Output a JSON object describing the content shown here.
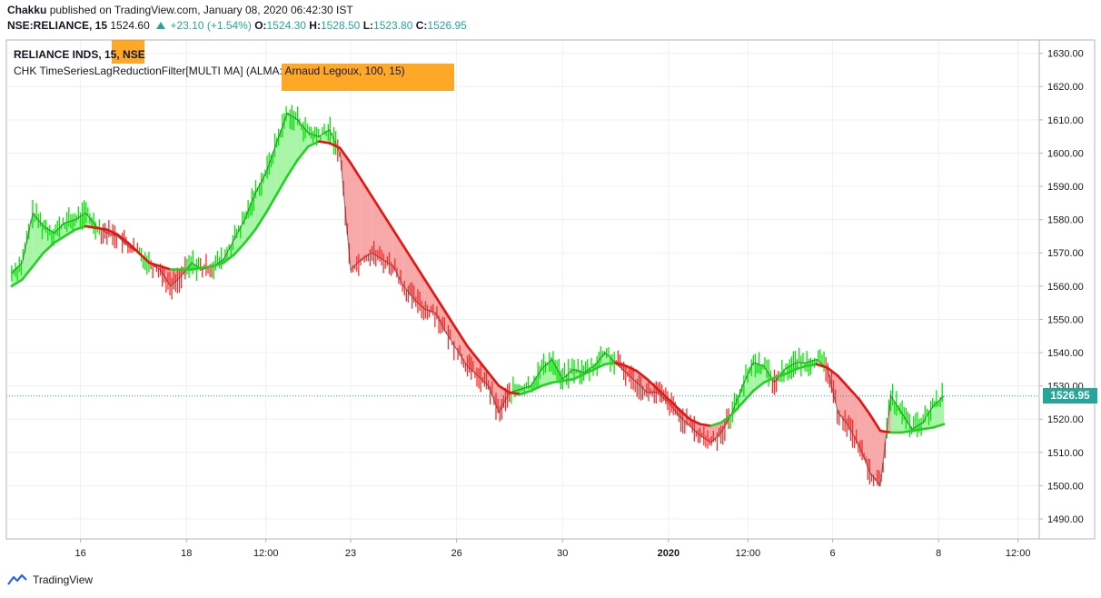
{
  "header": {
    "publisher": "Chakku",
    "published_text": "published on TradingView.com, January 08, 2020 06:42:30 IST",
    "symbol": "NSE:RELIANCE, 15",
    "last": "1524.60",
    "change": "+23.10 (+1.54%)",
    "o_label": "O:",
    "o_value": "1524.30",
    "h_label": "H:",
    "h_value": "1528.50",
    "l_label": "L:",
    "l_value": "1523.80",
    "c_label": "C:",
    "c_value": "1526.95"
  },
  "legend": {
    "series_prefix": "RELIANCE INDS, 15, ",
    "series_exchange": "NSE",
    "indicator_prefix": "CHK TimeSeriesLagReductionFilter[MULTI MA] (ALMA",
    "indicator_rest": ": Arnaud Legoux, 100, 15)"
  },
  "price_tag": "1526.95",
  "footer": {
    "brand": "TradingView"
  },
  "colors": {
    "up": "#00e600",
    "down": "#ff2a2a",
    "ma_up": "#22d122",
    "ma_down": "#e8130f",
    "fill_up": "#a8f5a8",
    "fill_down": "#f7a8a8",
    "price_line": "#26a69a"
  },
  "chart_data": {
    "type": "line",
    "ylim": [
      1484,
      1634
    ],
    "y_ticks": [
      "1630.00",
      "1620.00",
      "1610.00",
      "1600.00",
      "1590.00",
      "1580.00",
      "1570.00",
      "1560.00",
      "1550.00",
      "1540.00",
      "1530.00",
      "1520.00",
      "1510.00",
      "1500.00",
      "1490.00"
    ],
    "y_tick_values": [
      1630,
      1620,
      1610,
      1600,
      1590,
      1580,
      1570,
      1560,
      1550,
      1540,
      1530,
      1520,
      1510,
      1500,
      1490
    ],
    "x_ticks": [
      {
        "label": "16",
        "x": 6.5
      },
      {
        "label": "18",
        "x": 16.5
      },
      {
        "label": "12:00",
        "x": 24
      },
      {
        "label": "23",
        "x": 32
      },
      {
        "label": "26",
        "x": 42
      },
      {
        "label": "30",
        "x": 52
      },
      {
        "label": "2020",
        "x": 62,
        "bold": true
      },
      {
        "label": "12:00",
        "x": 69.5
      },
      {
        "label": "6",
        "x": 77.5
      },
      {
        "label": "8",
        "x": 87.5
      },
      {
        "label": "12:00",
        "x": 95
      }
    ],
    "xlim": [
      -0.5,
      97
    ],
    "series": [
      {
        "name": "RELIANCE INDS",
        "values": [
          [
            0,
            1564
          ],
          [
            1,
            1567
          ],
          [
            2,
            1582
          ],
          [
            3,
            1578
          ],
          [
            4,
            1576
          ],
          [
            5,
            1579
          ],
          [
            6,
            1580
          ],
          [
            7,
            1582
          ],
          [
            8,
            1578
          ],
          [
            9,
            1576
          ],
          [
            10,
            1575
          ],
          [
            11,
            1572
          ],
          [
            12,
            1570
          ],
          [
            13,
            1567
          ],
          [
            14,
            1565
          ],
          [
            15,
            1560
          ],
          [
            16,
            1563
          ],
          [
            17,
            1567
          ],
          [
            18,
            1565
          ],
          [
            19,
            1566
          ],
          [
            20,
            1568
          ],
          [
            21,
            1574
          ],
          [
            22,
            1580
          ],
          [
            23,
            1588
          ],
          [
            24,
            1594
          ],
          [
            25,
            1603
          ],
          [
            26,
            1612
          ],
          [
            27,
            1610
          ],
          [
            28,
            1606
          ],
          [
            29,
            1605
          ],
          [
            30,
            1607
          ],
          [
            31,
            1600
          ],
          [
            32,
            1565
          ],
          [
            33,
            1568
          ],
          [
            34,
            1570
          ],
          [
            35,
            1568
          ],
          [
            36,
            1566
          ],
          [
            37,
            1560
          ],
          [
            38,
            1556
          ],
          [
            39,
            1553
          ],
          [
            40,
            1552
          ],
          [
            41,
            1546
          ],
          [
            42,
            1541
          ],
          [
            43,
            1536
          ],
          [
            44,
            1533
          ],
          [
            45,
            1530
          ],
          [
            46,
            1522
          ],
          [
            47,
            1528
          ],
          [
            48,
            1529
          ],
          [
            49,
            1530
          ],
          [
            50,
            1535
          ],
          [
            51,
            1538
          ],
          [
            52,
            1532
          ],
          [
            53,
            1535
          ],
          [
            54,
            1534
          ],
          [
            55,
            1536
          ],
          [
            56,
            1540
          ],
          [
            57,
            1537
          ],
          [
            58,
            1534
          ],
          [
            59,
            1531
          ],
          [
            60,
            1528
          ],
          [
            61,
            1528
          ],
          [
            62,
            1525
          ],
          [
            63,
            1521
          ],
          [
            64,
            1518
          ],
          [
            65,
            1515
          ],
          [
            66,
            1513
          ],
          [
            67,
            1516
          ],
          [
            68,
            1522
          ],
          [
            69,
            1530
          ],
          [
            70,
            1537
          ],
          [
            71,
            1536
          ],
          [
            72,
            1531
          ],
          [
            73,
            1535
          ],
          [
            74,
            1537
          ],
          [
            75,
            1537
          ],
          [
            76,
            1538
          ],
          [
            77,
            1535
          ],
          [
            78,
            1522
          ],
          [
            79,
            1518
          ],
          [
            80,
            1512
          ],
          [
            81,
            1504
          ],
          [
            82,
            1500
          ],
          [
            83,
            1527
          ],
          [
            84,
            1522
          ],
          [
            85,
            1517
          ],
          [
            86,
            1519
          ],
          [
            87,
            1524
          ],
          [
            88,
            1527
          ]
        ]
      },
      {
        "name": "ALMA",
        "values": [
          [
            0,
            1560
          ],
          [
            1,
            1562
          ],
          [
            2,
            1566
          ],
          [
            3,
            1570
          ],
          [
            4,
            1573
          ],
          [
            5,
            1575
          ],
          [
            6,
            1577
          ],
          [
            7,
            1578
          ],
          [
            8,
            1577.5
          ],
          [
            9,
            1577
          ],
          [
            10,
            1575.5
          ],
          [
            11,
            1573
          ],
          [
            12,
            1570
          ],
          [
            13,
            1567
          ],
          [
            14,
            1566
          ],
          [
            15,
            1565
          ],
          [
            16,
            1565
          ],
          [
            17,
            1565
          ],
          [
            18,
            1565.5
          ],
          [
            19,
            1566
          ],
          [
            20,
            1567
          ],
          [
            21,
            1569.5
          ],
          [
            22,
            1573
          ],
          [
            23,
            1577
          ],
          [
            24,
            1582
          ],
          [
            25,
            1587.5
          ],
          [
            26,
            1593
          ],
          [
            27,
            1598
          ],
          [
            28,
            1602
          ],
          [
            29,
            1603.5
          ],
          [
            30,
            1603
          ],
          [
            31,
            1601.5
          ],
          [
            32,
            1597
          ],
          [
            33,
            1592
          ],
          [
            34,
            1587
          ],
          [
            35,
            1582
          ],
          [
            36,
            1577
          ],
          [
            37,
            1572
          ],
          [
            38,
            1567
          ],
          [
            39,
            1562
          ],
          [
            40,
            1557
          ],
          [
            41,
            1552
          ],
          [
            42,
            1547
          ],
          [
            43,
            1542
          ],
          [
            44,
            1538
          ],
          [
            45,
            1534
          ],
          [
            46,
            1530
          ],
          [
            47,
            1528
          ],
          [
            48,
            1527.5
          ],
          [
            49,
            1528.5
          ],
          [
            50,
            1530
          ],
          [
            51,
            1531
          ],
          [
            52,
            1531.5
          ],
          [
            53,
            1532
          ],
          [
            54,
            1533.5
          ],
          [
            55,
            1535
          ],
          [
            56,
            1536.5
          ],
          [
            57,
            1537
          ],
          [
            58,
            1536
          ],
          [
            59,
            1534.5
          ],
          [
            60,
            1532
          ],
          [
            61,
            1529
          ],
          [
            62,
            1526
          ],
          [
            63,
            1523
          ],
          [
            64,
            1520
          ],
          [
            65,
            1518.5
          ],
          [
            66,
            1518
          ],
          [
            67,
            1519
          ],
          [
            68,
            1521.5
          ],
          [
            69,
            1525
          ],
          [
            70,
            1528.5
          ],
          [
            71,
            1531
          ],
          [
            72,
            1532.5
          ],
          [
            73,
            1533.5
          ],
          [
            74,
            1535
          ],
          [
            75,
            1536
          ],
          [
            76,
            1536.5
          ],
          [
            77,
            1535.5
          ],
          [
            78,
            1533
          ],
          [
            79,
            1529.5
          ],
          [
            80,
            1526
          ],
          [
            81,
            1521.5
          ],
          [
            82,
            1516.5
          ],
          [
            83,
            1516
          ],
          [
            84,
            1516
          ],
          [
            85,
            1516.5
          ],
          [
            86,
            1517
          ],
          [
            87,
            1517.5
          ],
          [
            88,
            1518.5
          ]
        ]
      }
    ],
    "grid": true,
    "last_price": 1526.95
  }
}
